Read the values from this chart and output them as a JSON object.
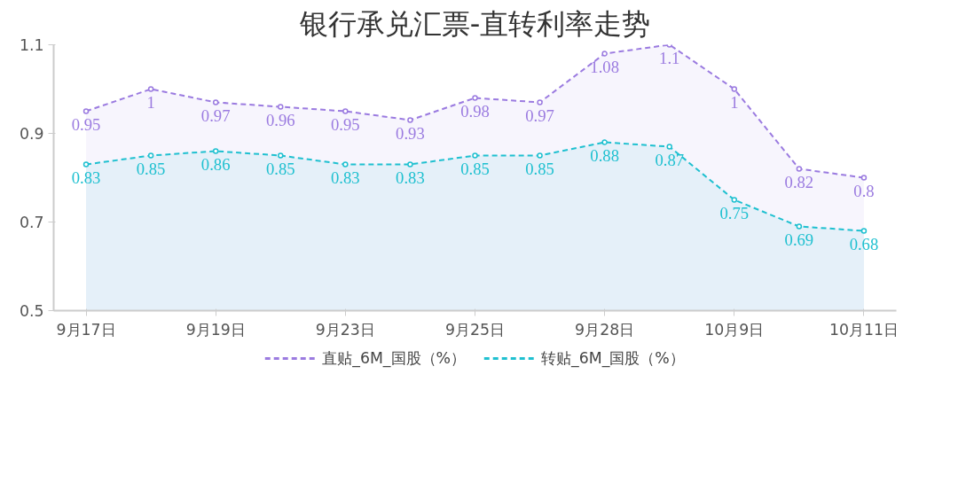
{
  "chart_data": {
    "type": "area",
    "title": "银行承兑汇票-直转利率走势",
    "categories": [
      "9月17日",
      null,
      "9月19日",
      null,
      "9月23日",
      null,
      "9月25日",
      null,
      "9月28日",
      null,
      "10月9日",
      null,
      "10月11日"
    ],
    "series": [
      {
        "name": "直贴_6M_国股（%）",
        "color": "#9b7be0",
        "values": [
          0.95,
          1,
          0.97,
          0.96,
          0.95,
          0.93,
          0.98,
          0.97,
          1.08,
          1.1,
          1,
          0.82,
          0.8
        ]
      },
      {
        "name": "转贴_6M_国股（%）",
        "color": "#1fc0d0",
        "values": [
          0.83,
          0.85,
          0.86,
          0.85,
          0.83,
          0.83,
          0.85,
          0.85,
          0.88,
          0.87,
          0.75,
          0.69,
          0.68
        ]
      }
    ],
    "ylim": [
      0.5,
      1.1
    ],
    "yticks": [
      0.5,
      0.7,
      0.9,
      1.1
    ],
    "grid": false,
    "legend": "bottom",
    "marker": "circle",
    "line_style": "dashed",
    "data_labels": true
  }
}
